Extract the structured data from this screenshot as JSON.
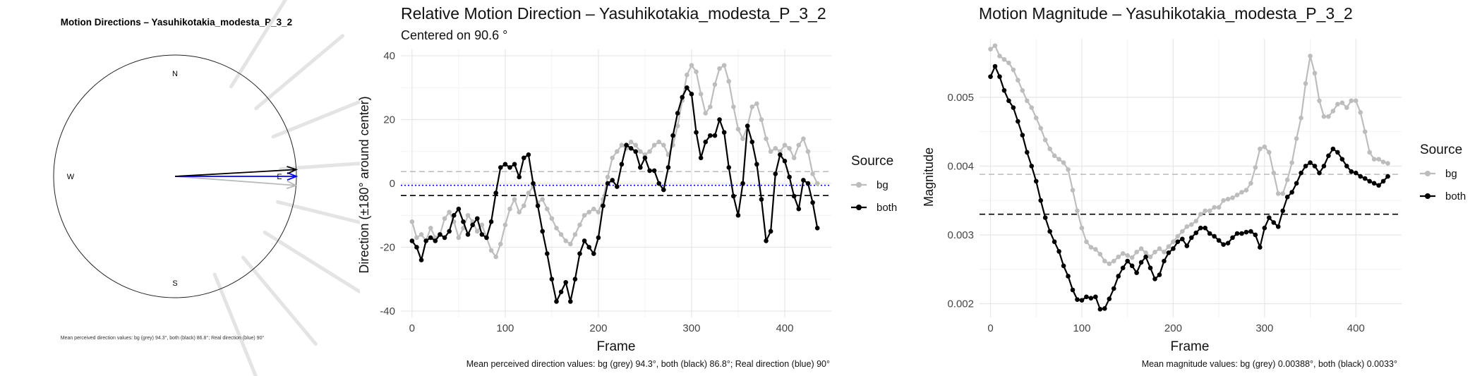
{
  "chart_data": [
    {
      "type": "polar-vector",
      "title": "Motion Directions – Yasuhikotakia_modesta_P_3_2",
      "compass": {
        "north": "N",
        "south": "S",
        "west": "W",
        "east": "E"
      },
      "vectors": [
        {
          "name": "bg (grey)",
          "angle_deg": 94.3,
          "color": "#bbbbbb"
        },
        {
          "name": "both (black)",
          "angle_deg": 86.8,
          "color": "#000000"
        },
        {
          "name": "Real direction (blue)",
          "angle_deg": 90,
          "color": "#0000ff"
        }
      ],
      "caption": "Mean perceived direction values: bg (grey) 94.3°, both (black) 86.8°; Real direction (blue) 90°"
    },
    {
      "type": "line",
      "title": "Relative Motion Direction – Yasuhikotakia_modesta_P_3_2",
      "subtitle": "Centered on  90.6 °",
      "xlabel": "Frame",
      "ylabel": "Direction (±180° around center)",
      "xlim": [
        -12,
        450
      ],
      "ylim": [
        -42,
        42
      ],
      "xticks": [
        0,
        100,
        200,
        300,
        400
      ],
      "yticks": [
        -40,
        -20,
        0,
        20,
        40
      ],
      "legend": {
        "title": "Source",
        "position": "right",
        "entries": [
          "bg",
          "both"
        ]
      },
      "series": [
        {
          "name": "bg",
          "color": "#bdbdbd",
          "x": [
            0,
            5,
            10,
            15,
            20,
            25,
            30,
            35,
            40,
            45,
            50,
            55,
            60,
            65,
            70,
            75,
            80,
            85,
            90,
            95,
            100,
            105,
            110,
            115,
            120,
            125,
            130,
            135,
            140,
            145,
            150,
            155,
            160,
            165,
            170,
            175,
            180,
            185,
            190,
            195,
            200,
            205,
            210,
            215,
            220,
            225,
            230,
            235,
            240,
            245,
            250,
            255,
            260,
            265,
            270,
            275,
            280,
            285,
            290,
            295,
            300,
            305,
            310,
            315,
            320,
            325,
            330,
            335,
            340,
            345,
            350,
            355,
            360,
            365,
            370,
            375,
            380,
            385,
            390,
            395,
            400,
            405,
            410,
            415,
            420,
            425,
            430,
            435
          ],
          "y": [
            -12,
            -17,
            -16,
            -18,
            -14,
            -17,
            -16,
            -11,
            -9,
            -12,
            -17,
            -14,
            -10,
            -12,
            -15,
            -13,
            -17,
            -21,
            -23,
            -19,
            -13,
            -8,
            -5,
            -9,
            -7,
            -3,
            -1,
            -6,
            -5,
            -8,
            -11,
            -14,
            -16,
            -18,
            -19,
            -16,
            -13,
            -10,
            -9,
            -8,
            -9,
            -5,
            2,
            8,
            10,
            12,
            11,
            13,
            12,
            10,
            9,
            10,
            12,
            13,
            12,
            9,
            12,
            18,
            26,
            34,
            37,
            35,
            28,
            22,
            24,
            31,
            36,
            37,
            32,
            24,
            17,
            14,
            18,
            24,
            25,
            20,
            14,
            10,
            11,
            10,
            12,
            11,
            8,
            12,
            14,
            10,
            3,
            0
          ]
        },
        {
          "name": "both",
          "color": "#000000",
          "x": [
            0,
            5,
            10,
            15,
            20,
            25,
            30,
            35,
            40,
            45,
            50,
            55,
            60,
            65,
            70,
            75,
            80,
            85,
            90,
            95,
            100,
            105,
            110,
            115,
            120,
            125,
            130,
            135,
            140,
            145,
            150,
            155,
            160,
            165,
            170,
            175,
            180,
            185,
            190,
            195,
            200,
            205,
            210,
            215,
            220,
            225,
            230,
            235,
            240,
            245,
            250,
            255,
            260,
            265,
            270,
            275,
            280,
            285,
            290,
            295,
            300,
            305,
            310,
            315,
            320,
            325,
            330,
            335,
            340,
            345,
            350,
            355,
            360,
            365,
            370,
            375,
            380,
            385,
            390,
            395,
            400,
            405,
            410,
            415,
            420,
            425,
            430,
            435
          ],
          "y": [
            -18,
            -20,
            -24,
            -18,
            -17,
            -18,
            -16,
            -17,
            -15,
            -10,
            -8,
            -12,
            -16,
            -13,
            -11,
            -16,
            -17,
            -12,
            -3,
            5,
            6,
            5,
            6,
            2,
            8,
            9,
            0,
            -7,
            -15,
            -22,
            -30,
            -37,
            -34,
            -31,
            -37,
            -30,
            -22,
            -18,
            -20,
            -22,
            -17,
            -7,
            0,
            1,
            -1,
            6,
            12,
            11,
            10,
            5,
            8,
            4,
            4,
            0,
            -2,
            5,
            15,
            22,
            27,
            30,
            28,
            16,
            8,
            13,
            15,
            15,
            20,
            16,
            5,
            -4,
            -10,
            0,
            18,
            13,
            6,
            -5,
            -18,
            -15,
            3,
            9,
            7,
            2,
            -4,
            -8,
            1,
            0,
            -6,
            -14
          ]
        }
      ],
      "reference_lines": [
        {
          "name": "bg mean",
          "y": 3.7,
          "color": "#bbbbbb",
          "style": "dashed"
        },
        {
          "name": "both mean",
          "y": -3.8,
          "color": "#000000",
          "style": "dashed"
        },
        {
          "name": "real",
          "y": -0.6,
          "color": "#0000ff",
          "style": "dotted"
        }
      ],
      "caption": "Mean perceived direction values: bg (grey) 94.3°, both (black) 86.8°; Real direction (blue) 90°"
    },
    {
      "type": "line",
      "title": "Motion Magnitude – Yasuhikotakia_modesta_P_3_2",
      "xlabel": "Frame",
      "ylabel": "Magnitude",
      "xlim": [
        -12,
        450
      ],
      "ylim": [
        0.0018,
        0.00585
      ],
      "xticks": [
        0,
        100,
        200,
        300,
        400
      ],
      "yticks": [
        0.002,
        0.003,
        0.004,
        0.005
      ],
      "legend": {
        "title": "Source",
        "position": "right",
        "entries": [
          "bg",
          "both"
        ]
      },
      "series": [
        {
          "name": "bg",
          "color": "#bdbdbd",
          "x": [
            0,
            5,
            10,
            15,
            20,
            25,
            30,
            35,
            40,
            45,
            50,
            55,
            60,
            65,
            70,
            75,
            80,
            85,
            90,
            95,
            100,
            105,
            110,
            115,
            120,
            125,
            130,
            135,
            140,
            145,
            150,
            155,
            160,
            165,
            170,
            175,
            180,
            185,
            190,
            195,
            200,
            205,
            210,
            215,
            220,
            225,
            230,
            235,
            240,
            245,
            250,
            255,
            260,
            265,
            270,
            275,
            280,
            285,
            290,
            295,
            300,
            305,
            310,
            315,
            320,
            325,
            330,
            335,
            340,
            345,
            350,
            355,
            360,
            365,
            370,
            375,
            380,
            385,
            390,
            395,
            400,
            405,
            410,
            415,
            420,
            425,
            430,
            435
          ],
          "y": [
            0.0057,
            0.00575,
            0.0056,
            0.00555,
            0.0055,
            0.0054,
            0.00525,
            0.0051,
            0.00495,
            0.00485,
            0.0047,
            0.00455,
            0.00438,
            0.00425,
            0.00415,
            0.0041,
            0.00405,
            0.00395,
            0.00365,
            0.00335,
            0.0031,
            0.0029,
            0.00282,
            0.00279,
            0.00272,
            0.00262,
            0.00258,
            0.00262,
            0.00268,
            0.00273,
            0.0027,
            0.00267,
            0.00275,
            0.0028,
            0.00274,
            0.00268,
            0.00275,
            0.0028,
            0.00275,
            0.00283,
            0.0029,
            0.00298,
            0.00305,
            0.00312,
            0.00315,
            0.0032,
            0.0033,
            0.00335,
            0.00335,
            0.0034,
            0.0034,
            0.0035,
            0.00352,
            0.00354,
            0.00358,
            0.00362,
            0.00365,
            0.00375,
            0.00398,
            0.00425,
            0.00428,
            0.0042,
            0.0039,
            0.0036,
            0.0036,
            0.0038,
            0.00405,
            0.0044,
            0.0047,
            0.0052,
            0.0056,
            0.00535,
            0.00495,
            0.00472,
            0.00472,
            0.0048,
            0.0049,
            0.00492,
            0.00485,
            0.00495,
            0.00495,
            0.00478,
            0.0045,
            0.0042,
            0.0041,
            0.0041,
            0.00406,
            0.00404
          ]
        },
        {
          "name": "both",
          "color": "#000000",
          "x": [
            0,
            5,
            10,
            15,
            20,
            25,
            30,
            35,
            40,
            45,
            50,
            55,
            60,
            65,
            70,
            75,
            80,
            85,
            90,
            95,
            100,
            105,
            110,
            115,
            120,
            125,
            130,
            135,
            140,
            145,
            150,
            155,
            160,
            165,
            170,
            175,
            180,
            185,
            190,
            195,
            200,
            205,
            210,
            215,
            220,
            225,
            230,
            235,
            240,
            245,
            250,
            255,
            260,
            265,
            270,
            275,
            280,
            285,
            290,
            295,
            300,
            305,
            310,
            315,
            320,
            325,
            330,
            335,
            340,
            345,
            350,
            355,
            360,
            365,
            370,
            375,
            380,
            385,
            390,
            395,
            400,
            405,
            410,
            415,
            420,
            425,
            430,
            435
          ],
          "y": [
            0.0053,
            0.00545,
            0.0053,
            0.0051,
            0.00495,
            0.00485,
            0.00465,
            0.00445,
            0.0042,
            0.004,
            0.00378,
            0.0035,
            0.00325,
            0.00305,
            0.0029,
            0.00276,
            0.00255,
            0.0024,
            0.0022,
            0.00206,
            0.00205,
            0.0021,
            0.00208,
            0.0021,
            0.00192,
            0.00193,
            0.00207,
            0.00222,
            0.0024,
            0.00252,
            0.00262,
            0.00255,
            0.00245,
            0.0026,
            0.00268,
            0.00252,
            0.00236,
            0.00242,
            0.00262,
            0.00274,
            0.0028,
            0.0029,
            0.00294,
            0.00284,
            0.00296,
            0.00303,
            0.0031,
            0.0031,
            0.00302,
            0.00298,
            0.00292,
            0.00286,
            0.00288,
            0.00296,
            0.00302,
            0.00302,
            0.00304,
            0.00305,
            0.003,
            0.00282,
            0.0031,
            0.00325,
            0.00318,
            0.00312,
            0.00335,
            0.00355,
            0.00362,
            0.00375,
            0.0039,
            0.004,
            0.00405,
            0.004,
            0.0039,
            0.004,
            0.00415,
            0.00425,
            0.0042,
            0.0041,
            0.004,
            0.00392,
            0.0039,
            0.00385,
            0.00382,
            0.00378,
            0.00375,
            0.00372,
            0.00378,
            0.00385
          ]
        }
      ],
      "reference_lines": [
        {
          "name": "bg mean",
          "y": 0.00388,
          "color": "#bbbbbb",
          "style": "dashed"
        },
        {
          "name": "both mean",
          "y": 0.0033,
          "color": "#000000",
          "style": "dashed"
        }
      ],
      "caption": "Mean magnitude values: bg (grey) 0.00388°, both (black) 0.0033°"
    }
  ]
}
